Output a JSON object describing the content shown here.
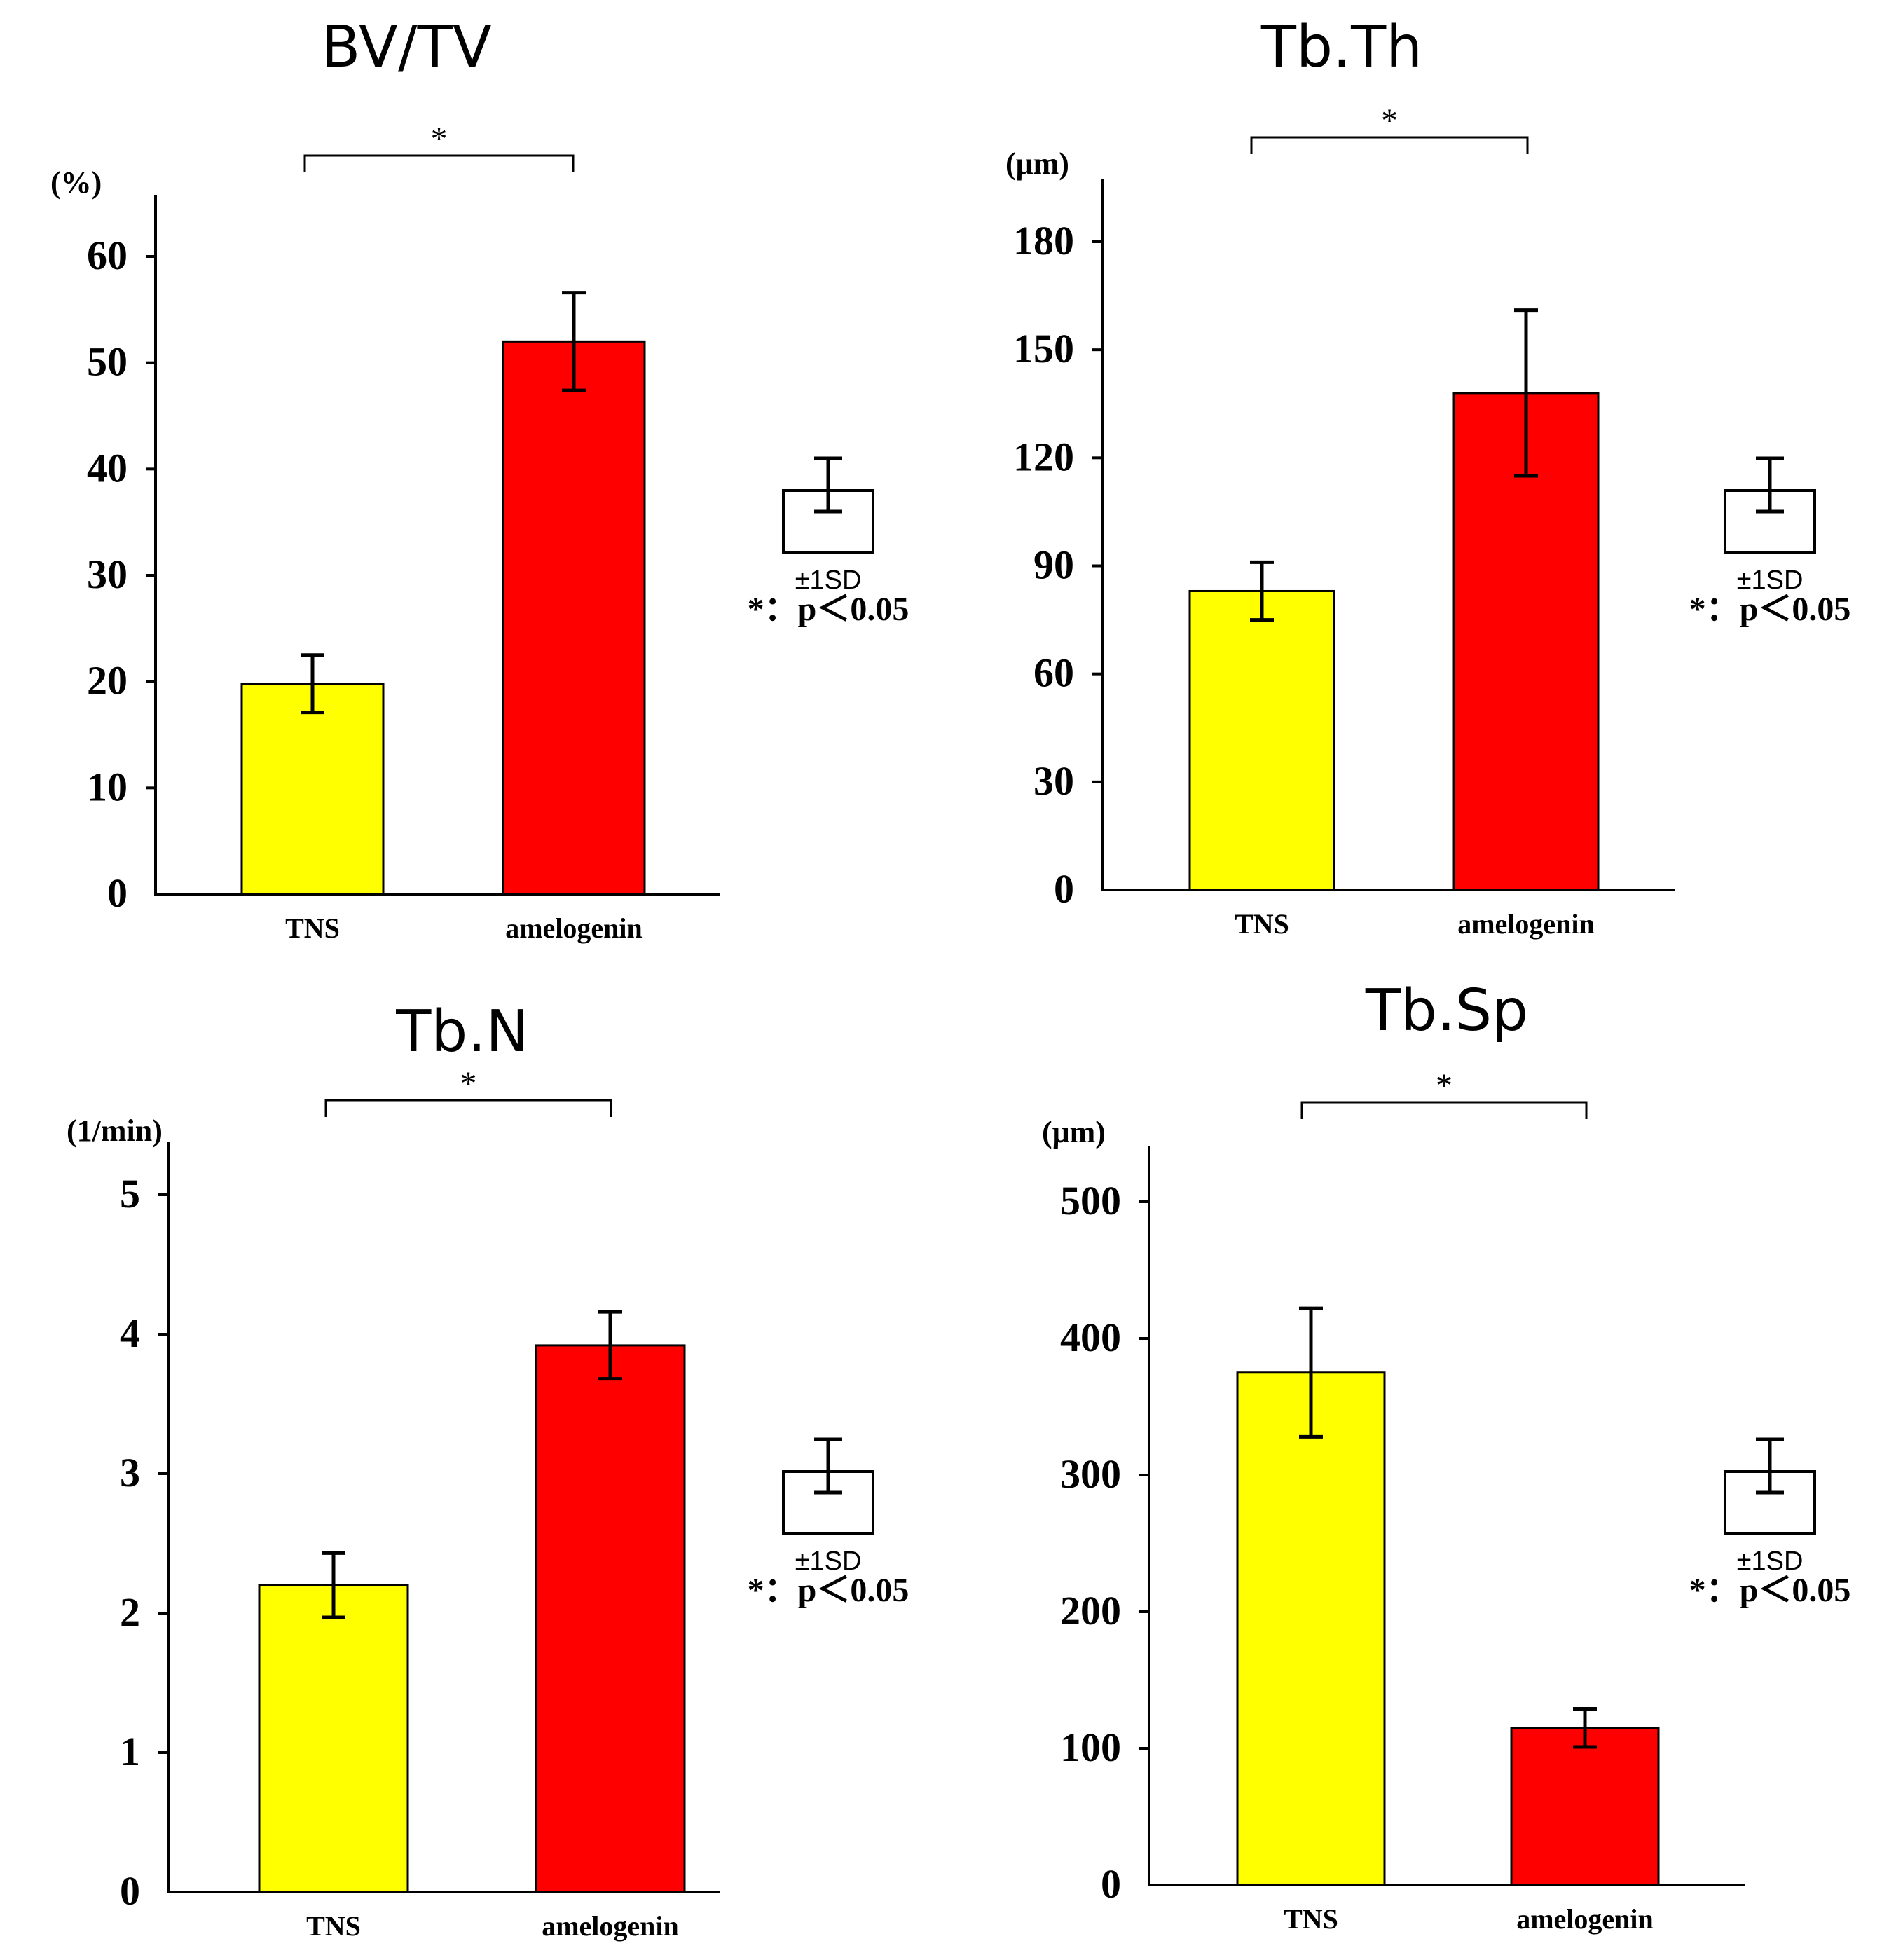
{
  "chart_data": [
    {
      "type": "bar",
      "title": "BV/TV",
      "unit_label": "(%)",
      "categories": [
        "TNS",
        "amelogenin"
      ],
      "values": [
        19.8,
        52.0
      ],
      "errors": [
        2.7,
        4.6
      ],
      "colors": [
        "#ffff00",
        "#ff0000"
      ],
      "ylim": [
        0,
        60
      ],
      "yticks": [
        0,
        10,
        20,
        30,
        40,
        50,
        60
      ],
      "significance": "*",
      "legend_sd": "±1SD",
      "legend_p": "*：p＜0.05"
    },
    {
      "type": "bar",
      "title": "Tb.Th",
      "unit_label": "(μm)",
      "categories": [
        "TNS",
        "amelogenin"
      ],
      "values": [
        83,
        138
      ],
      "errors": [
        8,
        23
      ],
      "colors": [
        "#ffff00",
        "#ff0000"
      ],
      "ylim": [
        0,
        180
      ],
      "yticks": [
        0,
        30,
        60,
        90,
        120,
        150,
        180
      ],
      "significance": "*",
      "legend_sd": "±1SD",
      "legend_p": "*：p＜0.05"
    },
    {
      "type": "bar",
      "title": "Tb.N",
      "unit_label": "(1/min)",
      "categories": [
        "TNS",
        "amelogenin"
      ],
      "values": [
        2.2,
        3.92
      ],
      "errors": [
        0.23,
        0.24
      ],
      "colors": [
        "#ffff00",
        "#ff0000"
      ],
      "ylim": [
        0,
        5
      ],
      "yticks": [
        0,
        1,
        2,
        3,
        4,
        5
      ],
      "significance": "*",
      "legend_sd": "±1SD",
      "legend_p": "*：p＜0.05"
    },
    {
      "type": "bar",
      "title": "Tb.Sp",
      "unit_label": "(μm)",
      "categories": [
        "TNS",
        "amelogenin"
      ],
      "values": [
        375,
        115
      ],
      "errors": [
        47,
        14
      ],
      "colors": [
        "#ffff00",
        "#ff0000"
      ],
      "ylim": [
        0,
        500
      ],
      "yticks": [
        0,
        100,
        200,
        300,
        400,
        500
      ],
      "significance": "*",
      "legend_sd": "±1SD",
      "legend_p": "*：p＜0.05"
    }
  ]
}
